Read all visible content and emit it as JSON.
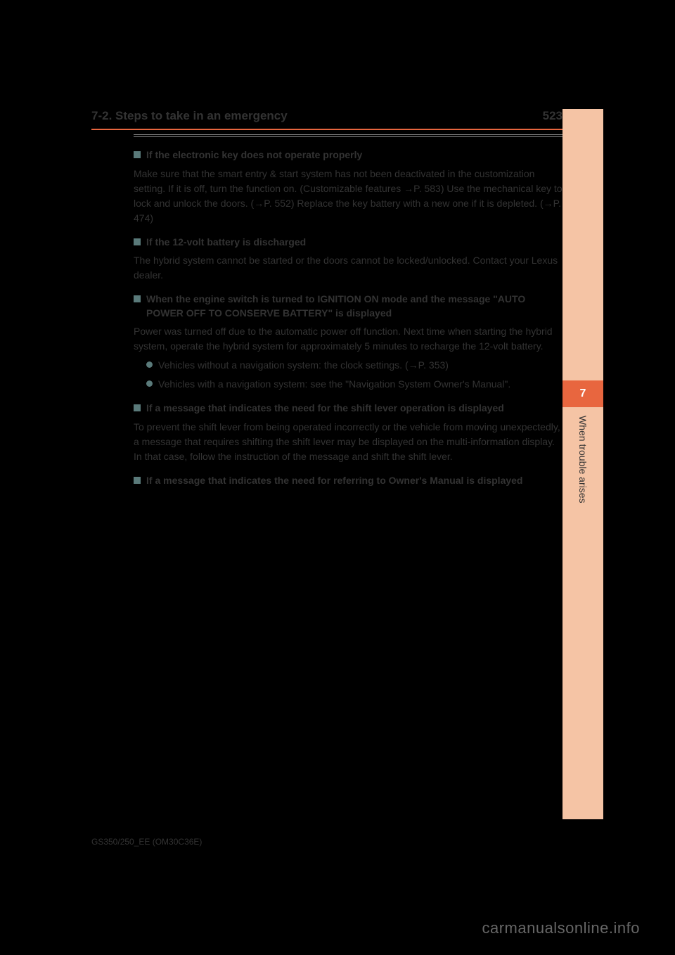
{
  "page": {
    "number": "523",
    "section_title": "7-2. Steps to take in an emergency",
    "date": "GS350/250_EE (OM30C36E)",
    "watermark": "carmanualsonline.info"
  },
  "side_tab": {
    "chapter_number": "7",
    "chapter_title": "When trouble arises"
  },
  "colors": {
    "divider": "#e8663f",
    "tab_light": "#f5c4a5",
    "tab_highlight": "#e8663f",
    "bullet": "#5a7a7a",
    "text": "#333333",
    "background": "#000000"
  },
  "sections": [
    {
      "heading": "If the electronic key does not operate properly",
      "body": "Make sure that the smart entry & start system has not been deactivated in the customization setting. If it is off, turn the function on.\n(Customizable features →P. 583)\nUse the mechanical key to lock and unlock the doors. (→P. 552)\nReplace the key battery with a new one if it is depleted. (→P. 474)"
    },
    {
      "heading": "If the 12-volt battery is discharged",
      "body": "The hybrid system cannot be started or the doors cannot be locked/unlocked.\nContact your Lexus dealer."
    },
    {
      "heading": "When the engine switch is turned to IGNITION ON mode and the message \"AUTO POWER OFF TO CONSERVE BATTERY\" is displayed",
      "body": "Power was turned off due to the automatic power off function. Next time when starting the hybrid system, operate the hybrid system for approximately 5 minutes to recharge the 12-volt battery.",
      "subs": [
        {
          "text": "Vehicles without a navigation system: the clock settings. (→P. 353)"
        },
        {
          "text": "Vehicles with a navigation system: see the \"Navigation System Owner's Manual\"."
        }
      ]
    },
    {
      "heading": "If a message that indicates the need for the shift lever operation is displayed",
      "body": "To prevent the shift lever from being operated incorrectly or the vehicle from moving unexpectedly, a message that requires shifting the shift lever may be displayed on the multi-information display. In that case, follow the instruction of the message and shift the shift lever."
    },
    {
      "heading": "If a message that indicates the need for referring to Owner's Manual is displayed",
      "subs": []
    }
  ]
}
